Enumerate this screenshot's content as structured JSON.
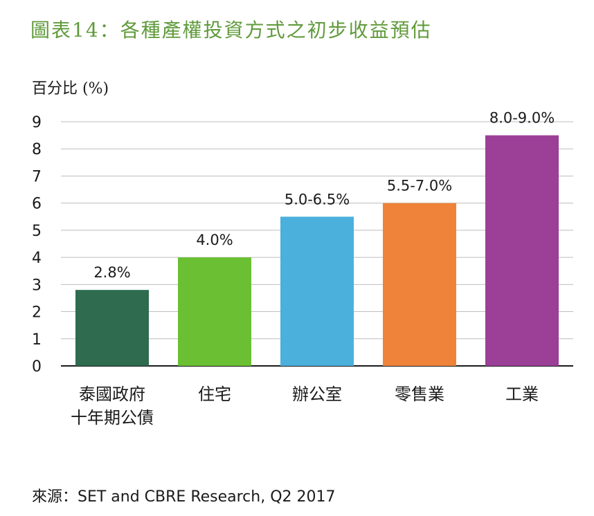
{
  "title": "圖表14：各種產權投資方式之初步收益預估",
  "source": "來源：SET and CBRE Research, Q2 2017",
  "chart_data": {
    "type": "bar",
    "ylabel": "百分比 (%)",
    "xlabel": "",
    "ylim": [
      0,
      9
    ],
    "yticks": [
      0,
      1,
      2,
      3,
      4,
      5,
      6,
      7,
      8,
      9
    ],
    "grid": true,
    "categories": [
      "泰國政府\n十年期公債",
      "住宅",
      "辦公室",
      "零售業",
      "工業"
    ],
    "values": [
      2.8,
      4.0,
      5.5,
      6.0,
      8.5
    ],
    "data_labels": [
      "2.8%",
      "4.0%",
      "5.0-6.5%",
      "5.5-7.0%",
      "8.0-9.0%"
    ],
    "colors": [
      "#2e6b4f",
      "#6abf33",
      "#4cb0dc",
      "#ee8339",
      "#9b3f97"
    ]
  }
}
